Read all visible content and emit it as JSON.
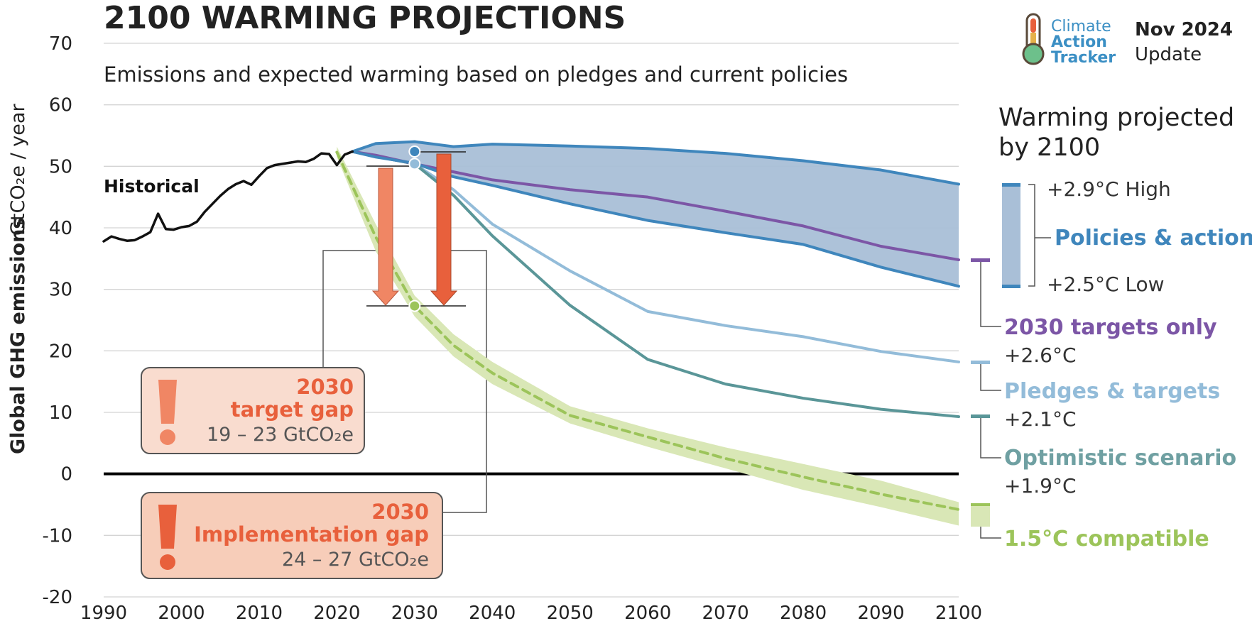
{
  "title": "2100 WARMING PROJECTIONS",
  "subtitle": "Emissions and expected warming based on pledges and current policies",
  "ylabel_main": "Global GHG emissions",
  "ylabel_unit": "GtCO₂e / year",
  "logo": {
    "line1": "Climate",
    "line2": "Action",
    "line3": "Tracker"
  },
  "update": {
    "line1": "Nov 2024",
    "line2": "Update"
  },
  "side_title": {
    "line1": "Warming projected",
    "line2": "by 2100"
  },
  "annotations": {
    "historical": "Historical",
    "policies_high": "+2.9°C High",
    "policies_low": "+2.5°C Low",
    "policies_label": "Policies & action",
    "targets_label": "2030 targets only",
    "targets_temp": "+2.6°C",
    "pledges_label": "Pledges & targets",
    "pledges_temp": "+2.1°C",
    "optimistic_label": "Optimistic scenario",
    "optimistic_temp": "+1.9°C",
    "compatible_label": "1.5°C compatible"
  },
  "target_gap": {
    "line1": "2030",
    "line2": "target gap",
    "range": "19 – 23  GtCO₂e"
  },
  "implementation_gap": {
    "line1": "2030",
    "line2": "Implementation gap",
    "range": "24 – 27  GtCO₂e"
  },
  "colors": {
    "historical": "#111111",
    "policies": "#3f86bc",
    "policies_fill": "#a9bfd7",
    "targets": "#7c56a6",
    "pledges": "#93bcd9",
    "optimistic": "#5a9698",
    "compatible": "#9cc45a",
    "compatible_fill": "#d9e7b6",
    "target_gap": "#f08664",
    "implementation_gap": "#e8603c"
  },
  "chart_data": {
    "type": "line",
    "xlabel": "",
    "ylabel": "Global GHG emissions GtCO₂e / year",
    "xlim": [
      1990,
      2100
    ],
    "ylim": [
      -20,
      70
    ],
    "x_ticks": [
      1990,
      2000,
      2010,
      2020,
      2030,
      2040,
      2050,
      2060,
      2070,
      2080,
      2090,
      2100
    ],
    "y_ticks": [
      -20,
      -10,
      0,
      10,
      20,
      30,
      40,
      50,
      60,
      70
    ],
    "grid": true,
    "series": [
      {
        "name": "Historical",
        "x": [
          1990,
          1991,
          1992,
          1993,
          1994,
          1995,
          1996,
          1997,
          1998,
          1999,
          2000,
          2001,
          2002,
          2003,
          2004,
          2005,
          2006,
          2007,
          2008,
          2009,
          2010,
          2011,
          2012,
          2013,
          2014,
          2015,
          2016,
          2017,
          2018,
          2019,
          2020,
          2021,
          2022
        ],
        "y": [
          37.8,
          38.6,
          38.2,
          37.9,
          38.0,
          38.6,
          39.3,
          42.3,
          39.8,
          39.7,
          40.1,
          40.3,
          41.0,
          42.6,
          43.9,
          45.2,
          46.3,
          47.1,
          47.6,
          47.0,
          48.4,
          49.7,
          50.2,
          50.4,
          50.6,
          50.8,
          50.7,
          51.2,
          52.1,
          52.0,
          50.2,
          51.9,
          52.4
        ]
      },
      {
        "name": "Policies & action (high)",
        "x": [
          2022,
          2025,
          2030,
          2035,
          2040,
          2050,
          2060,
          2070,
          2080,
          2090,
          2100
        ],
        "y": [
          52.4,
          53.7,
          54.0,
          53.2,
          53.6,
          53.3,
          52.9,
          52.1,
          50.9,
          49.4,
          47.1
        ]
      },
      {
        "name": "Policies & action (low)",
        "x": [
          2022,
          2025,
          2030,
          2035,
          2040,
          2050,
          2060,
          2070,
          2080,
          2090,
          2100
        ],
        "y": [
          52.4,
          51.5,
          50.5,
          48.3,
          46.9,
          43.9,
          41.2,
          39.2,
          37.3,
          33.6,
          30.5
        ]
      },
      {
        "name": "2030 targets only",
        "x": [
          2022,
          2025,
          2030,
          2035,
          2040,
          2050,
          2060,
          2070,
          2080,
          2090,
          2100
        ],
        "y": [
          52.4,
          51.8,
          50.4,
          49.1,
          47.8,
          46.2,
          45.0,
          42.7,
          40.3,
          37.0,
          34.8
        ]
      },
      {
        "name": "Pledges & targets",
        "x": [
          2022,
          2025,
          2030,
          2035,
          2040,
          2050,
          2060,
          2070,
          2080,
          2090,
          2100
        ],
        "y": [
          52.4,
          51.6,
          50.4,
          46.2,
          40.6,
          33.0,
          26.4,
          24.1,
          22.3,
          19.9,
          18.2
        ]
      },
      {
        "name": "Optimistic scenario",
        "x": [
          2022,
          2025,
          2030,
          2035,
          2040,
          2050,
          2060,
          2070,
          2080,
          2090,
          2100
        ],
        "y": [
          52.4,
          51.6,
          50.4,
          45.3,
          38.7,
          27.4,
          18.6,
          14.6,
          12.3,
          10.5,
          9.3
        ]
      },
      {
        "name": "1.5°C compatible",
        "x": [
          2020,
          2025,
          2030,
          2035,
          2040,
          2050,
          2060,
          2070,
          2080,
          2090,
          2100
        ],
        "y": [
          52.3,
          38.5,
          27.3,
          20.9,
          16.4,
          9.5,
          6.0,
          2.5,
          -0.5,
          -3.3,
          -5.8
        ],
        "band_low": [
          51.5,
          36.2,
          25.6,
          19.1,
          14.6,
          8.2,
          4.4,
          0.9,
          -2.6,
          -5.4,
          -8.4
        ],
        "band_high": [
          53.2,
          40.6,
          29.0,
          22.7,
          18.2,
          11.0,
          7.4,
          4.3,
          1.6,
          -1.1,
          -4.6
        ]
      }
    ],
    "markers": [
      {
        "x": 2030,
        "y": 52.4,
        "series": "Policies & action"
      },
      {
        "x": 2030,
        "y": 50.4,
        "series": "Pledges & targets"
      },
      {
        "x": 2030,
        "y": 27.3,
        "series": "1.5°C compatible"
      }
    ]
  }
}
